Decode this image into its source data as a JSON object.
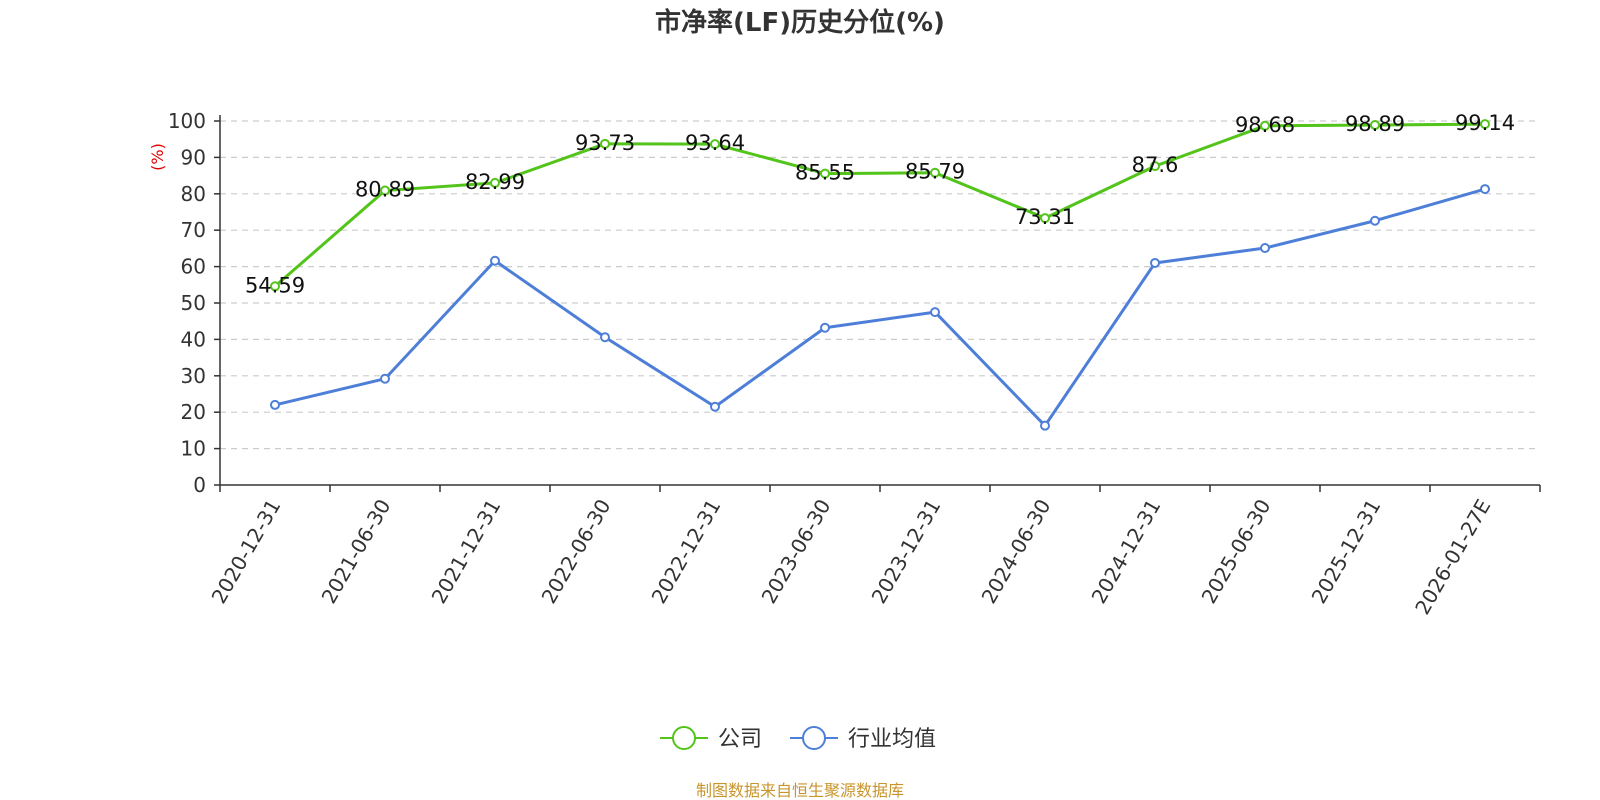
{
  "chart_data": {
    "type": "line",
    "title": "市净率(LF)历史分位(%)",
    "ylabel": "(%)",
    "xlabel": "",
    "ylim": [
      0,
      100
    ],
    "yticks": [
      0,
      10,
      20,
      30,
      40,
      50,
      60,
      70,
      80,
      90,
      100
    ],
    "grid": true,
    "legend_position": "bottom",
    "categories": [
      "2020-12-31",
      "2021-06-30",
      "2021-12-31",
      "2022-06-30",
      "2022-12-31",
      "2023-06-30",
      "2023-12-31",
      "2024-06-30",
      "2024-12-31",
      "2025-06-30",
      "2025-12-31",
      "2026-01-27E"
    ],
    "series": [
      {
        "name": "公司",
        "color": "#52c41a",
        "show_labels": true,
        "values": [
          54.59,
          80.89,
          82.99,
          93.73,
          93.64,
          85.55,
          85.79,
          73.31,
          87.6,
          98.68,
          98.89,
          99.14
        ]
      },
      {
        "name": "行业均值",
        "color": "#4e7fd8",
        "show_labels": false,
        "values": [
          22.0,
          29.2,
          61.6,
          40.6,
          21.5,
          43.2,
          47.5,
          16.3,
          61.0,
          65.1,
          72.6,
          81.3
        ]
      }
    ]
  },
  "source": "制图数据来自恒生聚源数据库",
  "colors": {
    "ylabel": "#e00000",
    "source": "#c8952c",
    "axis": "#333333",
    "grid": "#cccccc"
  }
}
